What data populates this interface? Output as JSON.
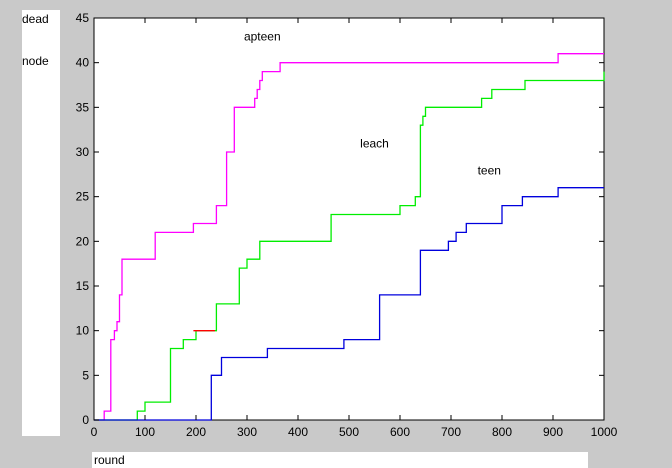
{
  "chart_data": {
    "type": "line",
    "ylabel_lines": [
      "dead",
      "node"
    ],
    "xlabel": "round",
    "xlim": [
      0,
      1000
    ],
    "ylim": [
      0,
      45
    ],
    "xticks": [
      0,
      100,
      200,
      300,
      400,
      500,
      600,
      700,
      800,
      900,
      1000
    ],
    "yticks": [
      0,
      5,
      10,
      15,
      20,
      25,
      30,
      35,
      40,
      45
    ],
    "grid": false,
    "annotations": [
      {
        "text": "apteen",
        "x": 330,
        "y": 42.5
      },
      {
        "text": "leach",
        "x": 550,
        "y": 30.5
      },
      {
        "text": "teen",
        "x": 775,
        "y": 27.5
      }
    ],
    "series": [
      {
        "name": "apteen",
        "color": "#ff00ff",
        "x": [
          0,
          15,
          20,
          30,
          33,
          38,
          40,
          45,
          50,
          55,
          120,
          195,
          240,
          260,
          275,
          315,
          320,
          325,
          330,
          340,
          345,
          355,
          365,
          910,
          1000
        ],
        "y": [
          0,
          0,
          1,
          1,
          9,
          9,
          10,
          11,
          14,
          18,
          21,
          22,
          24,
          30,
          35,
          36,
          37,
          38,
          39,
          39,
          39,
          39,
          40,
          41,
          41
        ]
      },
      {
        "name": "leach",
        "color": "#00ee00",
        "x": [
          0,
          80,
          85,
          100,
          150,
          175,
          200,
          240,
          285,
          290,
          300,
          325,
          460,
          465,
          600,
          630,
          640,
          645,
          650,
          760,
          780,
          845,
          1000
        ],
        "y": [
          0,
          0,
          1,
          2,
          8,
          9,
          10,
          13,
          17,
          17,
          18,
          20,
          20,
          23,
          24,
          25,
          33,
          34,
          35,
          36,
          37,
          38,
          39
        ]
      },
      {
        "name": "teen",
        "color": "#0000dd",
        "x": [
          0,
          225,
          230,
          250,
          270,
          290,
          340,
          490,
          560,
          565,
          640,
          645,
          695,
          700,
          710,
          730,
          775,
          800,
          840,
          870,
          900,
          910,
          1000
        ],
        "y": [
          0,
          0,
          5,
          7,
          7,
          7,
          8,
          9,
          14,
          14,
          19,
          19,
          20,
          20,
          21,
          22,
          22,
          24,
          25,
          25,
          25,
          26,
          26
        ]
      },
      {
        "name": "",
        "color": "#ff0000",
        "x": [
          195,
          237
        ],
        "y": [
          10,
          10
        ]
      }
    ]
  }
}
